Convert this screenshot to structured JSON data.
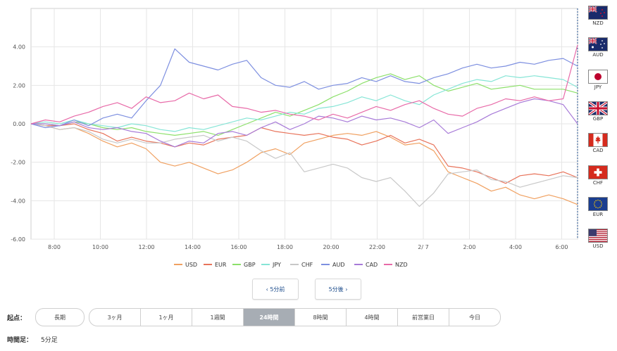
{
  "chart_data": {
    "type": "line",
    "title": "",
    "xlabel": "",
    "ylabel": "",
    "ylim": [
      -6,
      6
    ],
    "y_ticks": [
      "4.00",
      "2.00",
      "0.00",
      "-2.00",
      "-4.00",
      "-6.00"
    ],
    "x_tick_labels": [
      "8:00",
      "10:00",
      "12:00",
      "14:00",
      "16:00",
      "18:00",
      "20:00",
      "22:00",
      "2/ 7",
      "2:00",
      "4:00",
      "6:00"
    ],
    "grid": true,
    "legend_position": "bottom",
    "series": [
      {
        "name": "USD",
        "color": "#f0a060",
        "values": [
          0,
          -0.1,
          -0.3,
          -0.2,
          -0.5,
          -0.9,
          -1.2,
          -1.0,
          -1.3,
          -2.0,
          -2.2,
          -2.0,
          -2.3,
          -2.6,
          -2.4,
          -2.0,
          -1.5,
          -1.3,
          -1.6,
          -1.0,
          -0.8,
          -0.6,
          -0.5,
          -0.6,
          -0.4,
          -0.7,
          -1.1,
          -1.0,
          -1.4,
          -2.5,
          -2.8,
          -3.1,
          -3.5,
          -3.3,
          -3.7,
          -3.9,
          -3.7,
          -3.9,
          -4.2
        ]
      },
      {
        "name": "EUR",
        "color": "#e8735a",
        "values": [
          0,
          -0.1,
          -0.1,
          0.0,
          -0.3,
          -0.5,
          -0.9,
          -0.7,
          -0.9,
          -1.0,
          -1.2,
          -1.0,
          -1.1,
          -0.8,
          -0.7,
          -0.6,
          -0.2,
          -0.4,
          -0.5,
          -0.6,
          -0.5,
          -0.7,
          -0.8,
          -1.1,
          -0.9,
          -0.6,
          -1.0,
          -0.8,
          -1.1,
          -2.2,
          -2.3,
          -2.5,
          -2.8,
          -3.1,
          -2.7,
          -2.6,
          -2.7,
          -2.5,
          -2.8
        ]
      },
      {
        "name": "GBP",
        "color": "#8ce06a",
        "values": [
          0,
          0.0,
          -0.1,
          0.1,
          0.0,
          -0.2,
          -0.3,
          -0.2,
          -0.4,
          -0.5,
          -0.6,
          -0.5,
          -0.4,
          -0.6,
          -0.3,
          0.0,
          0.3,
          0.6,
          0.4,
          0.7,
          1.0,
          1.4,
          1.7,
          2.1,
          2.4,
          2.6,
          2.3,
          2.5,
          2.0,
          1.7,
          1.9,
          2.1,
          1.8,
          1.9,
          2.0,
          1.8,
          1.8,
          1.8,
          1.6
        ]
      },
      {
        "name": "JPY",
        "color": "#86e5d6",
        "values": [
          0,
          0.1,
          0.0,
          0.2,
          0.0,
          -0.1,
          -0.2,
          0.0,
          -0.1,
          -0.3,
          -0.4,
          -0.2,
          -0.3,
          -0.1,
          0.1,
          0.3,
          0.2,
          0.4,
          0.6,
          0.5,
          0.8,
          0.9,
          1.1,
          1.4,
          1.2,
          1.5,
          1.2,
          1.0,
          1.5,
          1.8,
          2.1,
          2.3,
          2.2,
          2.5,
          2.4,
          2.5,
          2.4,
          2.3,
          1.9
        ]
      },
      {
        "name": "CHF",
        "color": "#c8c8c8",
        "values": [
          0,
          -0.1,
          -0.3,
          -0.2,
          -0.4,
          -0.8,
          -1.0,
          -0.8,
          -1.0,
          -1.0,
          -0.8,
          -0.7,
          -0.6,
          -0.9,
          -0.7,
          -0.9,
          -1.4,
          -1.8,
          -1.5,
          -2.5,
          -2.3,
          -2.1,
          -2.3,
          -2.8,
          -3.0,
          -2.8,
          -3.5,
          -4.3,
          -3.6,
          -2.6,
          -2.5,
          -2.4,
          -2.9,
          -3.0,
          -3.3,
          -3.1,
          -2.9,
          -2.7,
          -2.8
        ]
      },
      {
        "name": "AUD",
        "color": "#7d8fe0",
        "values": [
          0,
          -0.2,
          -0.1,
          0.2,
          -0.1,
          0.3,
          0.5,
          0.3,
          1.2,
          2.0,
          3.9,
          3.2,
          3.0,
          2.8,
          3.1,
          3.3,
          2.4,
          2.0,
          1.9,
          2.2,
          1.8,
          2.0,
          2.1,
          2.4,
          2.2,
          2.5,
          2.2,
          2.1,
          2.4,
          2.6,
          2.9,
          3.1,
          2.9,
          3.0,
          3.2,
          3.1,
          3.3,
          3.4,
          3.0
        ]
      },
      {
        "name": "CAD",
        "color": "#a77ad8",
        "values": [
          0,
          0.0,
          -0.1,
          0.1,
          -0.2,
          -0.3,
          -0.2,
          -0.4,
          -0.5,
          -0.9,
          -1.2,
          -0.9,
          -1.0,
          -0.5,
          -0.4,
          -0.6,
          -0.2,
          0.1,
          -0.3,
          0.0,
          0.4,
          0.3,
          0.1,
          0.4,
          0.2,
          0.3,
          0.1,
          -0.2,
          0.2,
          -0.5,
          -0.2,
          0.1,
          0.5,
          0.8,
          1.1,
          1.3,
          1.2,
          1.0,
          0.0
        ]
      },
      {
        "name": "NZD",
        "color": "#e86aa8",
        "values": [
          0,
          0.2,
          0.1,
          0.4,
          0.6,
          0.9,
          1.1,
          0.8,
          1.4,
          1.1,
          1.2,
          1.6,
          1.3,
          1.5,
          0.9,
          0.8,
          0.6,
          0.7,
          0.5,
          0.4,
          0.2,
          0.5,
          0.3,
          0.6,
          0.9,
          0.7,
          1.0,
          1.2,
          0.8,
          0.5,
          0.4,
          0.8,
          1.0,
          1.3,
          1.2,
          1.4,
          1.2,
          1.3,
          4.1
        ]
      }
    ]
  },
  "flags": [
    {
      "code": "NZD",
      "icon": "nz-flag-icon"
    },
    {
      "code": "AUD",
      "icon": "au-flag-icon"
    },
    {
      "code": "JPY",
      "icon": "jp-flag-icon"
    },
    {
      "code": "GBP",
      "icon": "gb-flag-icon"
    },
    {
      "code": "CAD",
      "icon": "ca-flag-icon"
    },
    {
      "code": "CHF",
      "icon": "ch-flag-icon"
    },
    {
      "code": "EUR",
      "icon": "eu-flag-icon"
    },
    {
      "code": "USD",
      "icon": "us-flag-icon"
    }
  ],
  "nav": {
    "prev_label": "‹ 5分前",
    "next_label": "5分後 ›"
  },
  "start_point": {
    "label": "起点：",
    "standalone": "長期",
    "tabs": [
      "3ヶ月",
      "1ヶ月",
      "1週間",
      "24時間",
      "8時間",
      "4時間",
      "前営業日",
      "今日"
    ],
    "active": "24時間"
  },
  "timeframe": {
    "label": "時間足：",
    "value": "5分足"
  },
  "colors": {
    "accent": "#1a4a8a",
    "tab_active_bg": "#a7adb4",
    "grid": "#e6e6e6"
  }
}
